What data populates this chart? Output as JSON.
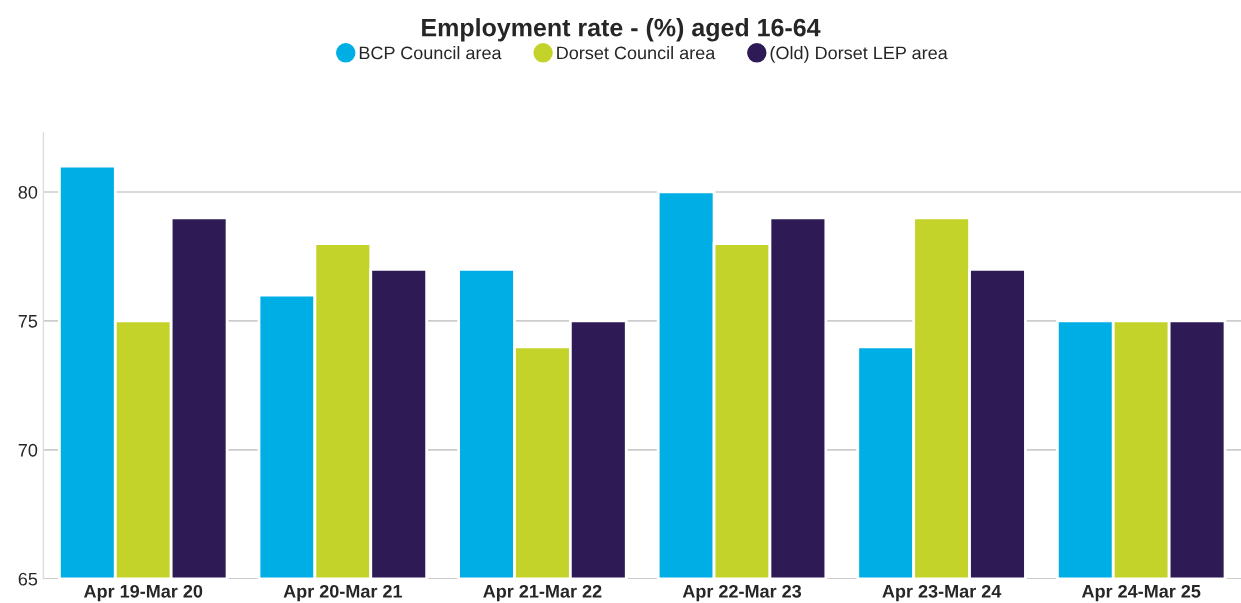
{
  "chart_data": {
    "type": "bar",
    "title": "Employment rate - (%) aged 16-64",
    "categories": [
      "Apr 19-Mar 20",
      "Apr 20-Mar 21",
      "Apr 21-Mar 22",
      "Apr 22-Mar 23",
      "Apr 23-Mar 24",
      "Apr 24-Mar 25"
    ],
    "series": [
      {
        "name": "BCP Council area",
        "color": "#00aee6",
        "values": [
          81,
          76,
          77,
          80,
          74,
          75
        ]
      },
      {
        "name": "Dorset Council area",
        "color": "#c4d32a",
        "values": [
          75,
          78,
          74,
          78,
          79,
          75
        ]
      },
      {
        "name": "(Old) Dorset LEP area",
        "color": "#2e1a54",
        "values": [
          79,
          77,
          75,
          79,
          77,
          75
        ]
      }
    ],
    "ylim": [
      65,
      82.3
    ],
    "yticks": [
      65,
      70,
      75,
      80
    ],
    "grid": "y",
    "legend": "top"
  }
}
